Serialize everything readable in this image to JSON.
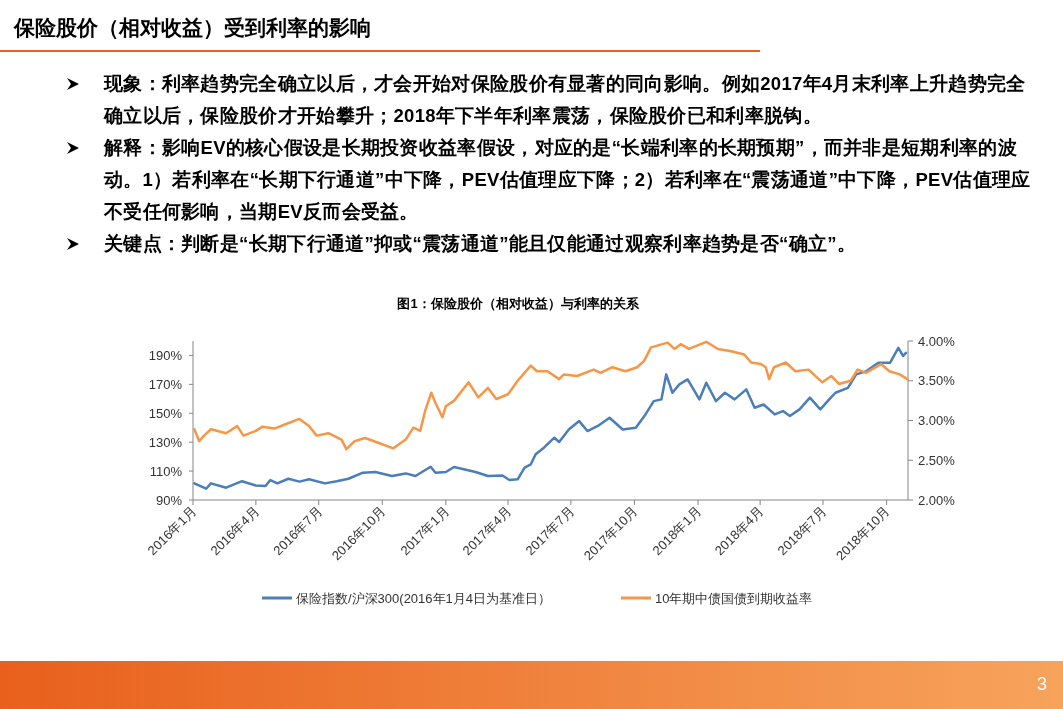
{
  "chart_data": {
    "type": "line",
    "title": "保险股价（相对收益）受到利率的影响",
    "subtitle": "图1：保险股价（相对收益）与利率的关系",
    "annotations": [
      "现象：利率趋势完全确立以后，才会开始对保险股价有显著的同向影响。例如2017年4月末利率上升趋势完全确立以后，保险股价才开始攀升；2018年下半年利率震荡，保险股价已和利率脱钩。",
      "解释：影响EV的核心假设是长期投资收益率假设，对应的是“长端利率的长期预期”，而并非是短期利率的波动。1）若利率在“长期下行通道”中下降，PEV估值理应下降；2）若利率在“震荡通道”中下降，PEV估值理应不受任何影响，当期EV反而会受益。",
      "关键点：判断是“长期下行通道”抑或“震荡通道”能且仅能通过观察利率趋势是否“确立”。",
      "3"
    ],
    "xlim": [
      "2016-01-01",
      "2018-11-01"
    ],
    "xticks": [
      {
        "value": "2016-01",
        "label": "2016年1月"
      },
      {
        "value": "2016-04",
        "label": "2016年4月"
      },
      {
        "value": "2016-07",
        "label": "2016年7月"
      },
      {
        "value": "2016-10",
        "label": "2016年10月"
      },
      {
        "value": "2017-01",
        "label": "2017年1月"
      },
      {
        "value": "2017-04",
        "label": "2017年4月"
      },
      {
        "value": "2017-07",
        "label": "2017年7月"
      },
      {
        "value": "2017-10",
        "label": "2017年10月"
      },
      {
        "value": "2018-01",
        "label": "2018年1月"
      },
      {
        "value": "2018-04",
        "label": "2018年4月"
      },
      {
        "value": "2018-07",
        "label": "2018年7月"
      },
      {
        "value": "2018-10",
        "label": "2018年10月"
      }
    ],
    "ylim": [
      90,
      200
    ],
    "yticks": [
      {
        "value": 90,
        "label": "90%"
      },
      {
        "value": 110,
        "label": "110%"
      },
      {
        "value": 130,
        "label": "130%"
      },
      {
        "value": 150,
        "label": "150%"
      },
      {
        "value": 170,
        "label": "170%"
      },
      {
        "value": 190,
        "label": "190%"
      }
    ],
    "y2lim": [
      2,
      4
    ],
    "y2ticks": [
      {
        "value": 2,
        "label": "2.00%"
      },
      {
        "value": 2.5,
        "label": "2.50%"
      },
      {
        "value": 3,
        "label": "3.00%"
      },
      {
        "value": 3.5,
        "label": "3.50%"
      },
      {
        "value": 4,
        "label": "4.00%"
      }
    ],
    "legend": "bottom",
    "series": [
      {
        "name": "保险指数/沪深300(2016年1月4日为基准日）",
        "color": "#4a7ebb",
        "x": [
          "2016-01-03",
          "2016-01-20",
          "2016-01-27",
          "2016-02-18",
          "2016-03-12",
          "2016-04-01",
          "2016-04-15",
          "2016-04-22",
          "2016-05-02",
          "2016-05-18",
          "2016-06-03",
          "2016-06-17",
          "2016-07-10",
          "2016-07-27",
          "2016-08-13",
          "2016-09-03",
          "2016-09-21",
          "2016-10-15",
          "2016-11-04",
          "2016-11-18",
          "2016-12-10",
          "2016-12-17",
          "2017-01-01",
          "2017-01-13",
          "2017-02-13",
          "2017-03-03",
          "2017-03-24",
          "2017-04-03",
          "2017-04-15",
          "2017-04-25",
          "2017-05-04",
          "2017-05-11",
          "2017-05-23",
          "2017-06-07",
          "2017-06-14",
          "2017-06-28",
          "2017-07-13",
          "2017-07-25",
          "2017-08-09",
          "2017-08-26",
          "2017-09-14",
          "2017-10-03",
          "2017-10-17",
          "2017-10-29",
          "2017-11-09",
          "2017-11-16",
          "2017-11-25",
          "2017-12-05",
          "2017-12-17",
          "2018-01-03",
          "2018-01-13",
          "2018-01-27",
          "2018-02-09",
          "2018-02-23",
          "2018-03-12",
          "2018-03-24",
          "2018-04-06",
          "2018-04-22",
          "2018-05-04",
          "2018-05-14",
          "2018-05-28",
          "2018-06-12",
          "2018-06-27",
          "2018-07-10",
          "2018-07-19",
          "2018-08-06",
          "2018-08-18",
          "2018-09-02",
          "2018-09-19",
          "2018-10-06",
          "2018-10-18",
          "2018-10-25",
          "2018-10-29"
        ],
        "values": [
          101.5,
          97.8,
          101.5,
          98.5,
          103,
          100,
          99.7,
          103.8,
          101.5,
          104.7,
          102.7,
          104.3,
          101.5,
          103,
          104.7,
          108.9,
          109.4,
          106.6,
          108.4,
          106.6,
          113,
          108.9,
          109.4,
          112.8,
          109.4,
          106.6,
          107,
          103.8,
          104.3,
          112.4,
          114.7,
          121.6,
          126.2,
          133.1,
          130.1,
          138.8,
          144.6,
          137.7,
          141.2,
          146.9,
          138.8,
          140,
          149.2,
          158.4,
          159.6,
          176.9,
          164.2,
          170,
          173.4,
          159.6,
          171.1,
          158.4,
          164.2,
          159.6,
          166.5,
          153.8,
          156.1,
          149.2,
          151.5,
          148.1,
          152.7,
          160.8,
          152.7,
          159.6,
          164.2,
          167.6,
          176.9,
          179.2,
          184.9,
          184.9,
          195.3,
          189.6,
          191.8
        ]
      },
      {
        "name": "10年期中债国债到期收益率",
        "color": "#f79646",
        "axis": "y2",
        "x": [
          "2016-01-03",
          "2016-01-10",
          "2016-01-17",
          "2016-01-27",
          "2016-02-18",
          "2016-03-05",
          "2016-03-14",
          "2016-04-01",
          "2016-04-10",
          "2016-04-29",
          "2016-05-13",
          "2016-06-03",
          "2016-06-17",
          "2016-06-28",
          "2016-07-15",
          "2016-08-03",
          "2016-08-10",
          "2016-08-22",
          "2016-09-06",
          "2016-09-25",
          "2016-10-17",
          "2016-11-04",
          "2016-11-15",
          "2016-11-25",
          "2016-12-02",
          "2016-12-11",
          "2016-12-17",
          "2016-12-27",
          "2017-01-01",
          "2017-01-13",
          "2017-02-03",
          "2017-02-17",
          "2017-03-03",
          "2017-03-15",
          "2017-04-01",
          "2017-04-15",
          "2017-05-04",
          "2017-05-13",
          "2017-05-28",
          "2017-06-14",
          "2017-06-21",
          "2017-07-10",
          "2017-08-03",
          "2017-08-13",
          "2017-08-30",
          "2017-09-18",
          "2017-10-05",
          "2017-10-15",
          "2017-10-25",
          "2017-11-18",
          "2017-11-28",
          "2017-12-07",
          "2017-12-19",
          "2018-01-13",
          "2018-01-30",
          "2018-02-18",
          "2018-03-09",
          "2018-03-19",
          "2018-04-02",
          "2018-04-09",
          "2018-04-14",
          "2018-04-21",
          "2018-05-08",
          "2018-05-22",
          "2018-06-10",
          "2018-06-30",
          "2018-07-13",
          "2018-07-24",
          "2018-08-10",
          "2018-08-20",
          "2018-09-01",
          "2018-09-23",
          "2018-10-05",
          "2018-10-20",
          "2018-10-31"
        ],
        "values": [
          2.89,
          2.74,
          2.81,
          2.89,
          2.84,
          2.93,
          2.81,
          2.87,
          2.92,
          2.9,
          2.95,
          3.02,
          2.93,
          2.81,
          2.84,
          2.76,
          2.64,
          2.74,
          2.78,
          2.72,
          2.65,
          2.76,
          2.91,
          2.87,
          3.12,
          3.35,
          3.22,
          3.04,
          3.18,
          3.25,
          3.48,
          3.29,
          3.41,
          3.27,
          3.33,
          3.5,
          3.69,
          3.62,
          3.62,
          3.52,
          3.58,
          3.56,
          3.64,
          3.6,
          3.67,
          3.62,
          3.67,
          3.75,
          3.92,
          3.98,
          3.9,
          3.96,
          3.9,
          3.99,
          3.9,
          3.87,
          3.83,
          3.73,
          3.71,
          3.67,
          3.52,
          3.67,
          3.73,
          3.62,
          3.64,
          3.48,
          3.56,
          3.46,
          3.5,
          3.64,
          3.6,
          3.71,
          3.62,
          3.58,
          3.52
        ]
      }
    ]
  }
}
